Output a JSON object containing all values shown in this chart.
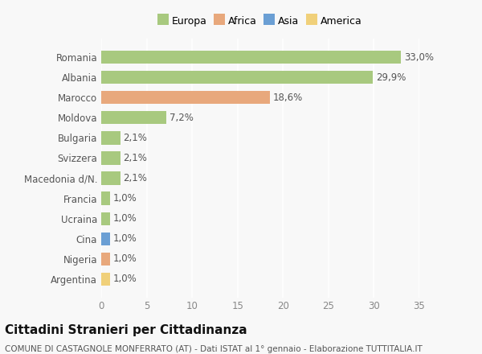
{
  "categories": [
    "Romania",
    "Albania",
    "Marocco",
    "Moldova",
    "Bulgaria",
    "Svizzera",
    "Macedonia d/N.",
    "Francia",
    "Ucraina",
    "Cina",
    "Nigeria",
    "Argentina"
  ],
  "values": [
    33.0,
    29.9,
    18.6,
    7.2,
    2.1,
    2.1,
    2.1,
    1.0,
    1.0,
    1.0,
    1.0,
    1.0
  ],
  "labels": [
    "33,0%",
    "29,9%",
    "18,6%",
    "7,2%",
    "2,1%",
    "2,1%",
    "2,1%",
    "1,0%",
    "1,0%",
    "1,0%",
    "1,0%",
    "1,0%"
  ],
  "continents": [
    "Europa",
    "Europa",
    "Africa",
    "Europa",
    "Europa",
    "Europa",
    "Europa",
    "Europa",
    "Europa",
    "Asia",
    "Africa",
    "America"
  ],
  "colors": {
    "Europa": "#a8c97f",
    "Africa": "#e8a87c",
    "Asia": "#6b9fd4",
    "America": "#f0d07a"
  },
  "legend_order": [
    "Europa",
    "Africa",
    "Asia",
    "America"
  ],
  "xlim": [
    0,
    35
  ],
  "xticks": [
    0,
    5,
    10,
    15,
    20,
    25,
    30,
    35
  ],
  "title": "Cittadini Stranieri per Cittadinanza",
  "subtitle": "COMUNE DI CASTAGNOLE MONFERRATO (AT) - Dati ISTAT al 1° gennaio - Elaborazione TUTTITALIA.IT",
  "background_color": "#f8f8f8",
  "bar_height": 0.65,
  "grid_color": "#ffffff",
  "title_fontsize": 11,
  "subtitle_fontsize": 7.5,
  "label_fontsize": 8.5,
  "ytick_fontsize": 8.5,
  "xtick_fontsize": 8.5,
  "legend_fontsize": 9
}
